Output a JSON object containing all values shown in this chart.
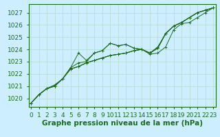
{
  "background_color": "#cceeff",
  "grid_color": "#b8ddd8",
  "line_color": "#1a6b1a",
  "title": "Graphe pression niveau de la mer (hPa)",
  "xlabel_fontsize": 7.5,
  "tick_fontsize": 6.5,
  "xlim": [
    -0.3,
    23.3
  ],
  "ylim": [
    1019.3,
    1027.7
  ],
  "yticks": [
    1020,
    1021,
    1022,
    1023,
    1024,
    1025,
    1026,
    1027
  ],
  "xticks": [
    0,
    1,
    2,
    3,
    4,
    5,
    6,
    7,
    8,
    9,
    10,
    11,
    12,
    13,
    14,
    15,
    16,
    17,
    18,
    19,
    20,
    21,
    22,
    23
  ],
  "series": [
    [
      1019.6,
      1020.3,
      1020.8,
      1021.0,
      1021.6,
      1022.4,
      1022.6,
      1022.9,
      1023.1,
      1023.3,
      1023.5,
      1023.6,
      1023.7,
      1023.9,
      1024.0,
      1023.7,
      1024.1,
      1025.3,
      1025.9,
      1026.2,
      1026.6,
      1027.0,
      1027.2,
      1027.4
    ],
    [
      1019.6,
      1020.3,
      1020.8,
      1021.0,
      1021.6,
      1022.4,
      1022.6,
      1022.9,
      1023.1,
      1023.3,
      1023.5,
      1023.6,
      1023.7,
      1023.9,
      1024.0,
      1023.7,
      1024.1,
      1025.3,
      1025.9,
      1026.2,
      1026.6,
      1027.0,
      1027.2,
      1027.4
    ],
    [
      1019.6,
      1020.3,
      1020.8,
      1021.0,
      1021.6,
      1022.4,
      1022.6,
      1022.9,
      1023.1,
      1023.3,
      1023.5,
      1023.6,
      1023.7,
      1023.9,
      1024.0,
      1023.7,
      1024.1,
      1025.3,
      1025.9,
      1026.2,
      1026.6,
      1027.0,
      1027.2,
      1027.4
    ],
    [
      1019.6,
      1020.3,
      1020.8,
      1021.1,
      1021.6,
      1022.5,
      1023.7,
      1023.1,
      1023.7,
      1023.9,
      1024.5,
      1024.3,
      1024.4,
      1024.1,
      1024.0,
      1023.7,
      1024.2,
      1025.3,
      1025.9,
      1026.2,
      1026.6,
      1027.0,
      1027.2,
      1027.4
    ],
    [
      1019.6,
      1020.3,
      1020.8,
      1021.0,
      1021.6,
      1022.5,
      1022.9,
      1023.0,
      1023.7,
      1023.9,
      1024.5,
      1024.3,
      1024.4,
      1024.1,
      1024.0,
      1023.6,
      1023.7,
      1024.2,
      1025.6,
      1026.1,
      1026.2,
      1026.6,
      1027.0,
      1027.4
    ]
  ],
  "markers": [
    "+",
    "+",
    "+",
    "+",
    "+"
  ],
  "marker_sizes": [
    3,
    3,
    3,
    3,
    3
  ]
}
